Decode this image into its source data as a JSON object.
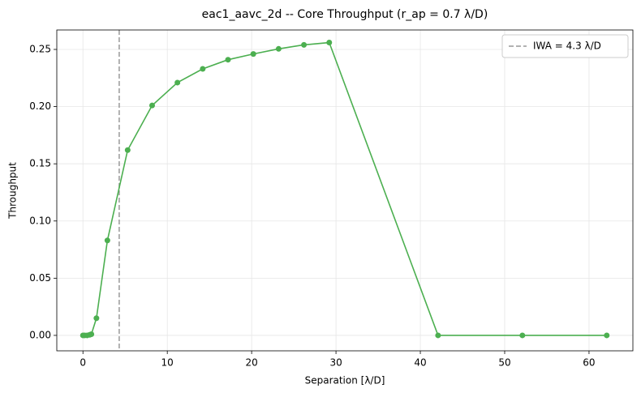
{
  "chart_data": {
    "type": "line",
    "title": "eac1_aavc_2d -- Core Throughput (r_ap = 0.7 λ/D)",
    "x_label": "Separation [λ/D]",
    "y_label": "Throughput",
    "x": [
      0,
      0.2,
      0.5,
      0.8,
      1.0,
      1.6,
      2.9,
      5.3,
      8.2,
      11.2,
      14.2,
      17.2,
      20.2,
      23.2,
      26.2,
      29.2,
      42.1,
      52.1,
      62.1
    ],
    "values": [
      0,
      0,
      0,
      0.0005,
      0.001,
      0.015,
      0.083,
      0.162,
      0.201,
      0.221,
      0.233,
      0.241,
      0.246,
      0.2505,
      0.254,
      0.256,
      0,
      0,
      0
    ],
    "color": "#4caf50",
    "vline": {
      "x": 4.3,
      "label": "IWA = 4.3 λ/D",
      "color": "#999999"
    },
    "legend": "upper right",
    "grid": true,
    "xlim": [
      -3.1,
      65.2
    ],
    "xticks": [
      0,
      10,
      20,
      30,
      40,
      50,
      60
    ],
    "ylim": [
      -0.0135,
      0.267
    ],
    "yticks": [
      {
        "value": 0,
        "label": "0.00"
      },
      0.05,
      {
        "value": 0.1,
        "label": "0.10"
      },
      0.15,
      {
        "value": 0.2,
        "label": "0.20"
      },
      0.25
    ]
  }
}
